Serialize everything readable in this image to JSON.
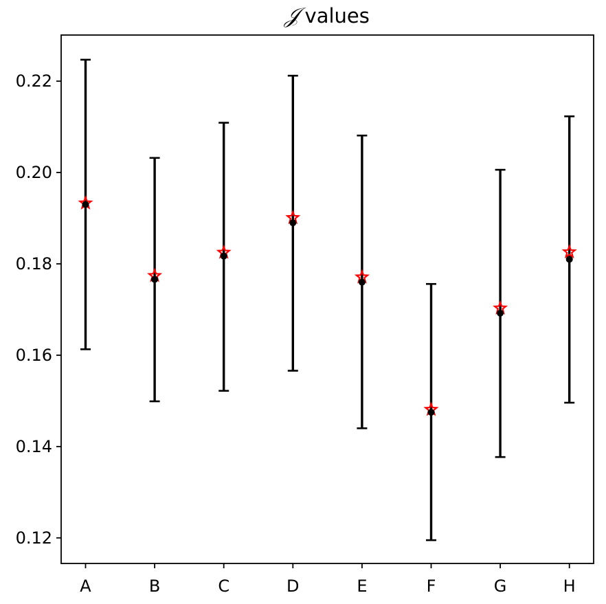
{
  "chart_data": {
    "type": "errorbar",
    "title": "𝒥 values",
    "title_symbol": "𝒥",
    "title_text": "values",
    "xlabel": "",
    "ylabel": "",
    "categories": [
      "A",
      "B",
      "C",
      "D",
      "E",
      "F",
      "G",
      "H"
    ],
    "series": [
      {
        "marker": "circle",
        "color": "#000000",
        "values": [
          0.193,
          0.1766,
          0.1817,
          0.189,
          0.176,
          0.1475,
          0.1692,
          0.181
        ],
        "error_lower": [
          0.1613,
          0.1499,
          0.1522,
          0.1566,
          0.144,
          0.1195,
          0.1377,
          0.1496
        ],
        "error_upper": [
          0.2247,
          0.2032,
          0.2109,
          0.2212,
          0.2081,
          0.1756,
          0.2006,
          0.2123
        ]
      },
      {
        "marker": "star",
        "color": "#ff0000",
        "values": [
          0.1933,
          0.1774,
          0.1825,
          0.1901,
          0.1771,
          0.1481,
          0.1703,
          0.1826
        ]
      }
    ],
    "yticks": [
      "0.12",
      "0.14",
      "0.16",
      "0.18",
      "0.20",
      "0.22"
    ],
    "ylim": [
      0.1144,
      0.2301
    ],
    "grid": false,
    "legend": "none"
  }
}
